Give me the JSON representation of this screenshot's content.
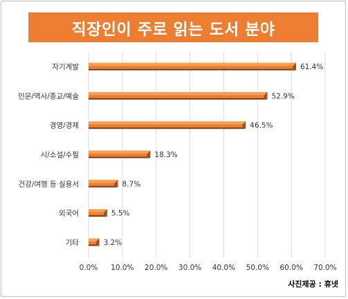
{
  "title": "직장인이 주로 읽는 도서 분야",
  "credit": "사진제공 : 휴넷",
  "colors": {
    "title_bg": "#ed7d31",
    "bar_top": "#f5a058",
    "bar_face": "#ed7d31",
    "bar_side": "#a0521e",
    "bar_bottom": "#7a3c14",
    "grid": "#d9d9d9",
    "text": "#333333"
  },
  "chart_data": {
    "type": "bar",
    "orientation": "horizontal",
    "title": "직장인이 주로 읽는 도서 분야",
    "categories": [
      "자기계발",
      "인문/역사/종교/예술",
      "경영/경제",
      "시/소설/수필",
      "건강/여행 등 실용서",
      "외국어",
      "기타"
    ],
    "values": [
      61.4,
      52.9,
      46.5,
      18.3,
      8.7,
      5.5,
      3.2
    ],
    "data_labels": [
      "61.4%",
      "52.9%",
      "46.5%",
      "18.3%",
      "8.7%",
      "5.5%",
      "3.2%"
    ],
    "xlim": [
      0,
      70
    ],
    "x_ticks": [
      "0.0%",
      "10.0%",
      "20.0%",
      "30.0%",
      "40.0%",
      "50.0%",
      "60.0%",
      "70.0%"
    ],
    "grid": true,
    "xlabel": "",
    "ylabel": ""
  }
}
